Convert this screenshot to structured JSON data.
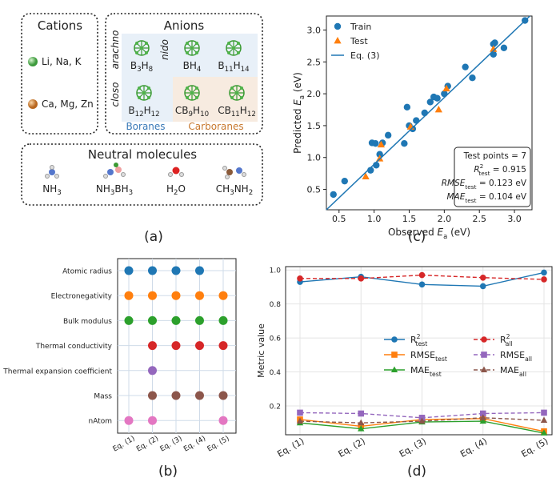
{
  "diagram": {
    "panel_label": "(a)",
    "cations": {
      "title": "Cations",
      "groups": [
        "Li, Na, K",
        "Ca, Mg, Zn"
      ]
    },
    "anions": {
      "title": "Anions",
      "classes": [
        "arachno",
        "nido",
        "closo"
      ],
      "formulas": [
        "B3H8",
        "BH4",
        "B11H14",
        "B12H12",
        "CB9H10",
        "CB11H12"
      ],
      "families": [
        "Boranes",
        "Carboranes"
      ]
    },
    "neutral": {
      "title": "Neutral molecules",
      "molecules": [
        "NH3",
        "NH3BH3",
        "H2O",
        "CH3NH2"
      ]
    }
  },
  "chart_data": [
    {
      "type": "matrix",
      "panel_label": "(b)",
      "columns": [
        "Eq. (1)",
        "Eq. (2)",
        "Eq. (3)",
        "Eq. (4)",
        "Eq. (5)"
      ],
      "rows": [
        {
          "name": "Atomic radius",
          "color": "#1f77b4",
          "values": [
            1,
            1,
            1,
            1,
            0
          ]
        },
        {
          "name": "Electronegativity",
          "color": "#ff7f0e",
          "values": [
            1,
            1,
            1,
            1,
            1
          ]
        },
        {
          "name": "Bulk modulus",
          "color": "#2ca02c",
          "values": [
            1,
            1,
            1,
            1,
            1
          ]
        },
        {
          "name": "Thermal conductivity",
          "color": "#d62728",
          "values": [
            0,
            1,
            1,
            1,
            1
          ]
        },
        {
          "name": "Thermal expansion coefficient",
          "color": "#9467bd",
          "values": [
            0,
            1,
            0,
            0,
            0
          ]
        },
        {
          "name": "Mass",
          "color": "#8c564b",
          "values": [
            0,
            1,
            1,
            1,
            1
          ]
        },
        {
          "name": "nAtom",
          "color": "#e377c2",
          "values": [
            1,
            1,
            0,
            0,
            1
          ]
        }
      ]
    },
    {
      "type": "scatter",
      "panel_label": "(c)",
      "xlabel": {
        "pre": "Observed ",
        "var": "E",
        "sub": "a",
        "post": " (eV)"
      },
      "ylabel": {
        "pre": "Predicted ",
        "var": "E",
        "sub": "a",
        "post": " (eV)"
      },
      "xlim": [
        0.32,
        3.25
      ],
      "ylim": [
        0.18,
        3.22
      ],
      "xticks": [
        0.5,
        {
          "value": 1,
          "label": "1.0"
        },
        1.5,
        {
          "value": 2,
          "label": "2.0"
        },
        2.5,
        {
          "value": 3,
          "label": "3.0"
        }
      ],
      "yticks": [
        0.5,
        {
          "value": 1,
          "label": "1.0"
        },
        1.5,
        {
          "value": 2,
          "label": "2.0"
        },
        2.5,
        {
          "value": 3,
          "label": "3.0"
        }
      ],
      "legend": "upper left",
      "series": [
        {
          "name": "Train",
          "color": "#1f77b4",
          "marker": "circle",
          "x": [
            0.42,
            0.58,
            0.95,
            0.97,
            1.02,
            1.03,
            1.08,
            1.12,
            1.2,
            1.43,
            1.47,
            1.5,
            1.55,
            1.6,
            1.72,
            1.8,
            1.85,
            1.9,
            2.0,
            2.05,
            2.3,
            2.4,
            2.7,
            2.7,
            2.72,
            2.85,
            3.15
          ],
          "values": [
            0.42,
            0.63,
            0.8,
            1.23,
            1.22,
            0.88,
            1.05,
            1.23,
            1.35,
            1.22,
            1.79,
            1.5,
            1.45,
            1.58,
            1.7,
            1.87,
            1.95,
            1.93,
            2.0,
            2.12,
            2.42,
            2.25,
            2.62,
            2.78,
            2.8,
            2.72,
            3.15
          ]
        },
        {
          "name": "Test",
          "color": "#ff7f0e",
          "marker": "triangle",
          "x": [
            0.88,
            1.08,
            1.1,
            1.52,
            1.92,
            2.03,
            2.7
          ],
          "values": [
            0.7,
            0.98,
            1.2,
            1.48,
            1.75,
            2.08,
            2.7
          ]
        },
        {
          "name": "Eq. (3)",
          "color": "#1f77b4",
          "marker": "line",
          "x": [
            0.32,
            3.22
          ],
          "values": [
            0.18,
            3.22
          ]
        }
      ],
      "annotation": [
        {
          "post": "Test points = 7"
        },
        {
          "var": "R",
          "sup": "2",
          "sub": "test",
          "post": " = 0.915"
        },
        {
          "var": "RMSE",
          "sub": "test",
          "post": " = 0.123 eV"
        },
        {
          "var": "MAE",
          "sub": "test",
          "post": " = 0.104 eV"
        }
      ]
    },
    {
      "type": "line",
      "panel_label": "(d)",
      "ylabel": "Metric value",
      "categories": [
        "Eq. (1)",
        "Eq. (2)",
        "Eq. (3)",
        "Eq. (4)",
        "Eq. (5)"
      ],
      "ylim": [
        0.03,
        1.02
      ],
      "yticks": [
        0.2,
        0.4,
        0.6,
        0.8,
        {
          "value": 1,
          "label": "1.0"
        }
      ],
      "grid": true,
      "legend": "center",
      "series": [
        {
          "name": "R",
          "sup": "2",
          "sub": "test",
          "color": "#1f77b4",
          "marker": "circle",
          "dash": false,
          "values": [
            0.93,
            0.96,
            0.915,
            0.905,
            0.985
          ]
        },
        {
          "name": "RMSE",
          "sub": "test",
          "color": "#ff7f0e",
          "marker": "square",
          "dash": false,
          "values": [
            0.12,
            0.08,
            0.12,
            0.125,
            0.05
          ]
        },
        {
          "name": "MAE",
          "sub": "test",
          "color": "#2ca02c",
          "marker": "triangle",
          "dash": false,
          "values": [
            0.1,
            0.065,
            0.105,
            0.11,
            0.04
          ]
        },
        {
          "name": "R",
          "sup": "2",
          "sub": "all",
          "color": "#d62728",
          "marker": "circle",
          "dash": true,
          "values": [
            0.95,
            0.95,
            0.97,
            0.955,
            0.945
          ]
        },
        {
          "name": "RMSE",
          "sub": "all",
          "color": "#9467bd",
          "marker": "square",
          "dash": true,
          "values": [
            0.16,
            0.155,
            0.13,
            0.155,
            0.16
          ]
        },
        {
          "name": "MAE",
          "sub": "all",
          "color": "#8c564b",
          "marker": "triangle",
          "dash": true,
          "values": [
            0.11,
            0.1,
            0.11,
            0.13,
            0.115
          ]
        }
      ]
    }
  ]
}
